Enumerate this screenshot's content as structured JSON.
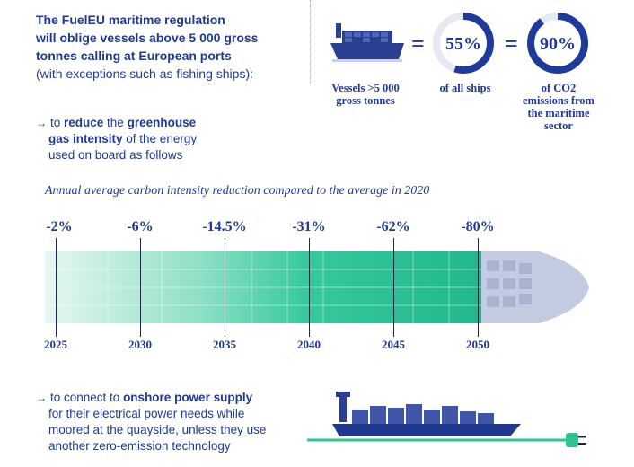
{
  "header": {
    "line1": "The FuelEU maritime regulation",
    "line2": "will oblige vessels above 5 000 gross",
    "line3": "tonnes calling at European ports",
    "line4": "(with exceptions such as fishing ships):"
  },
  "stats": {
    "equals": "=",
    "ships_ring": {
      "value": 55,
      "label": "55%"
    },
    "emissions_ring": {
      "value": 90,
      "label": "90%"
    },
    "vessels_caption_1": "Vessels  >5 000",
    "vessels_caption_2": "gross tonnes",
    "ships_caption": "of all ships",
    "emissions_caption_1": "of CO2",
    "emissions_caption_2": "emissions from",
    "emissions_caption_3": "the maritime",
    "emissions_caption_4": "sector",
    "colors": {
      "ring": "#1e3a9a",
      "ring_bg": "#e6e9f4"
    }
  },
  "bullet1": {
    "arrow": "→",
    "pre": "to ",
    "strong1": "reduce",
    "mid": " the ",
    "strong2": "greenhouse",
    "strong3": "gas intensity",
    "post1": " of the energy",
    "post2": "used on board as follows"
  },
  "timeline": {
    "title": "Annual average carbon intensity reduction compared to the average in 2020",
    "colors": {
      "bar": "#2fc79a",
      "bar_light": "#d6f3ea",
      "ship": "#b8c1da"
    }
  },
  "chart_data": {
    "type": "table",
    "title": "Annual average carbon intensity reduction compared to the average in 2020",
    "x": [
      "2025",
      "2030",
      "2035",
      "2040",
      "2045",
      "2050"
    ],
    "values": [
      -2,
      -6,
      -14.5,
      -31,
      -62,
      -80
    ],
    "labels": [
      "-2%",
      "-6%",
      "-14.5%",
      "-31%",
      "-62%",
      "-80%"
    ]
  },
  "bullet2": {
    "arrow": "→",
    "pre": "to connect to ",
    "strong": "onshore power supply",
    "line2": "for their electrical power needs while",
    "line3": "moored at the quayside, unless they use",
    "line4": "another zero-emission technology"
  }
}
